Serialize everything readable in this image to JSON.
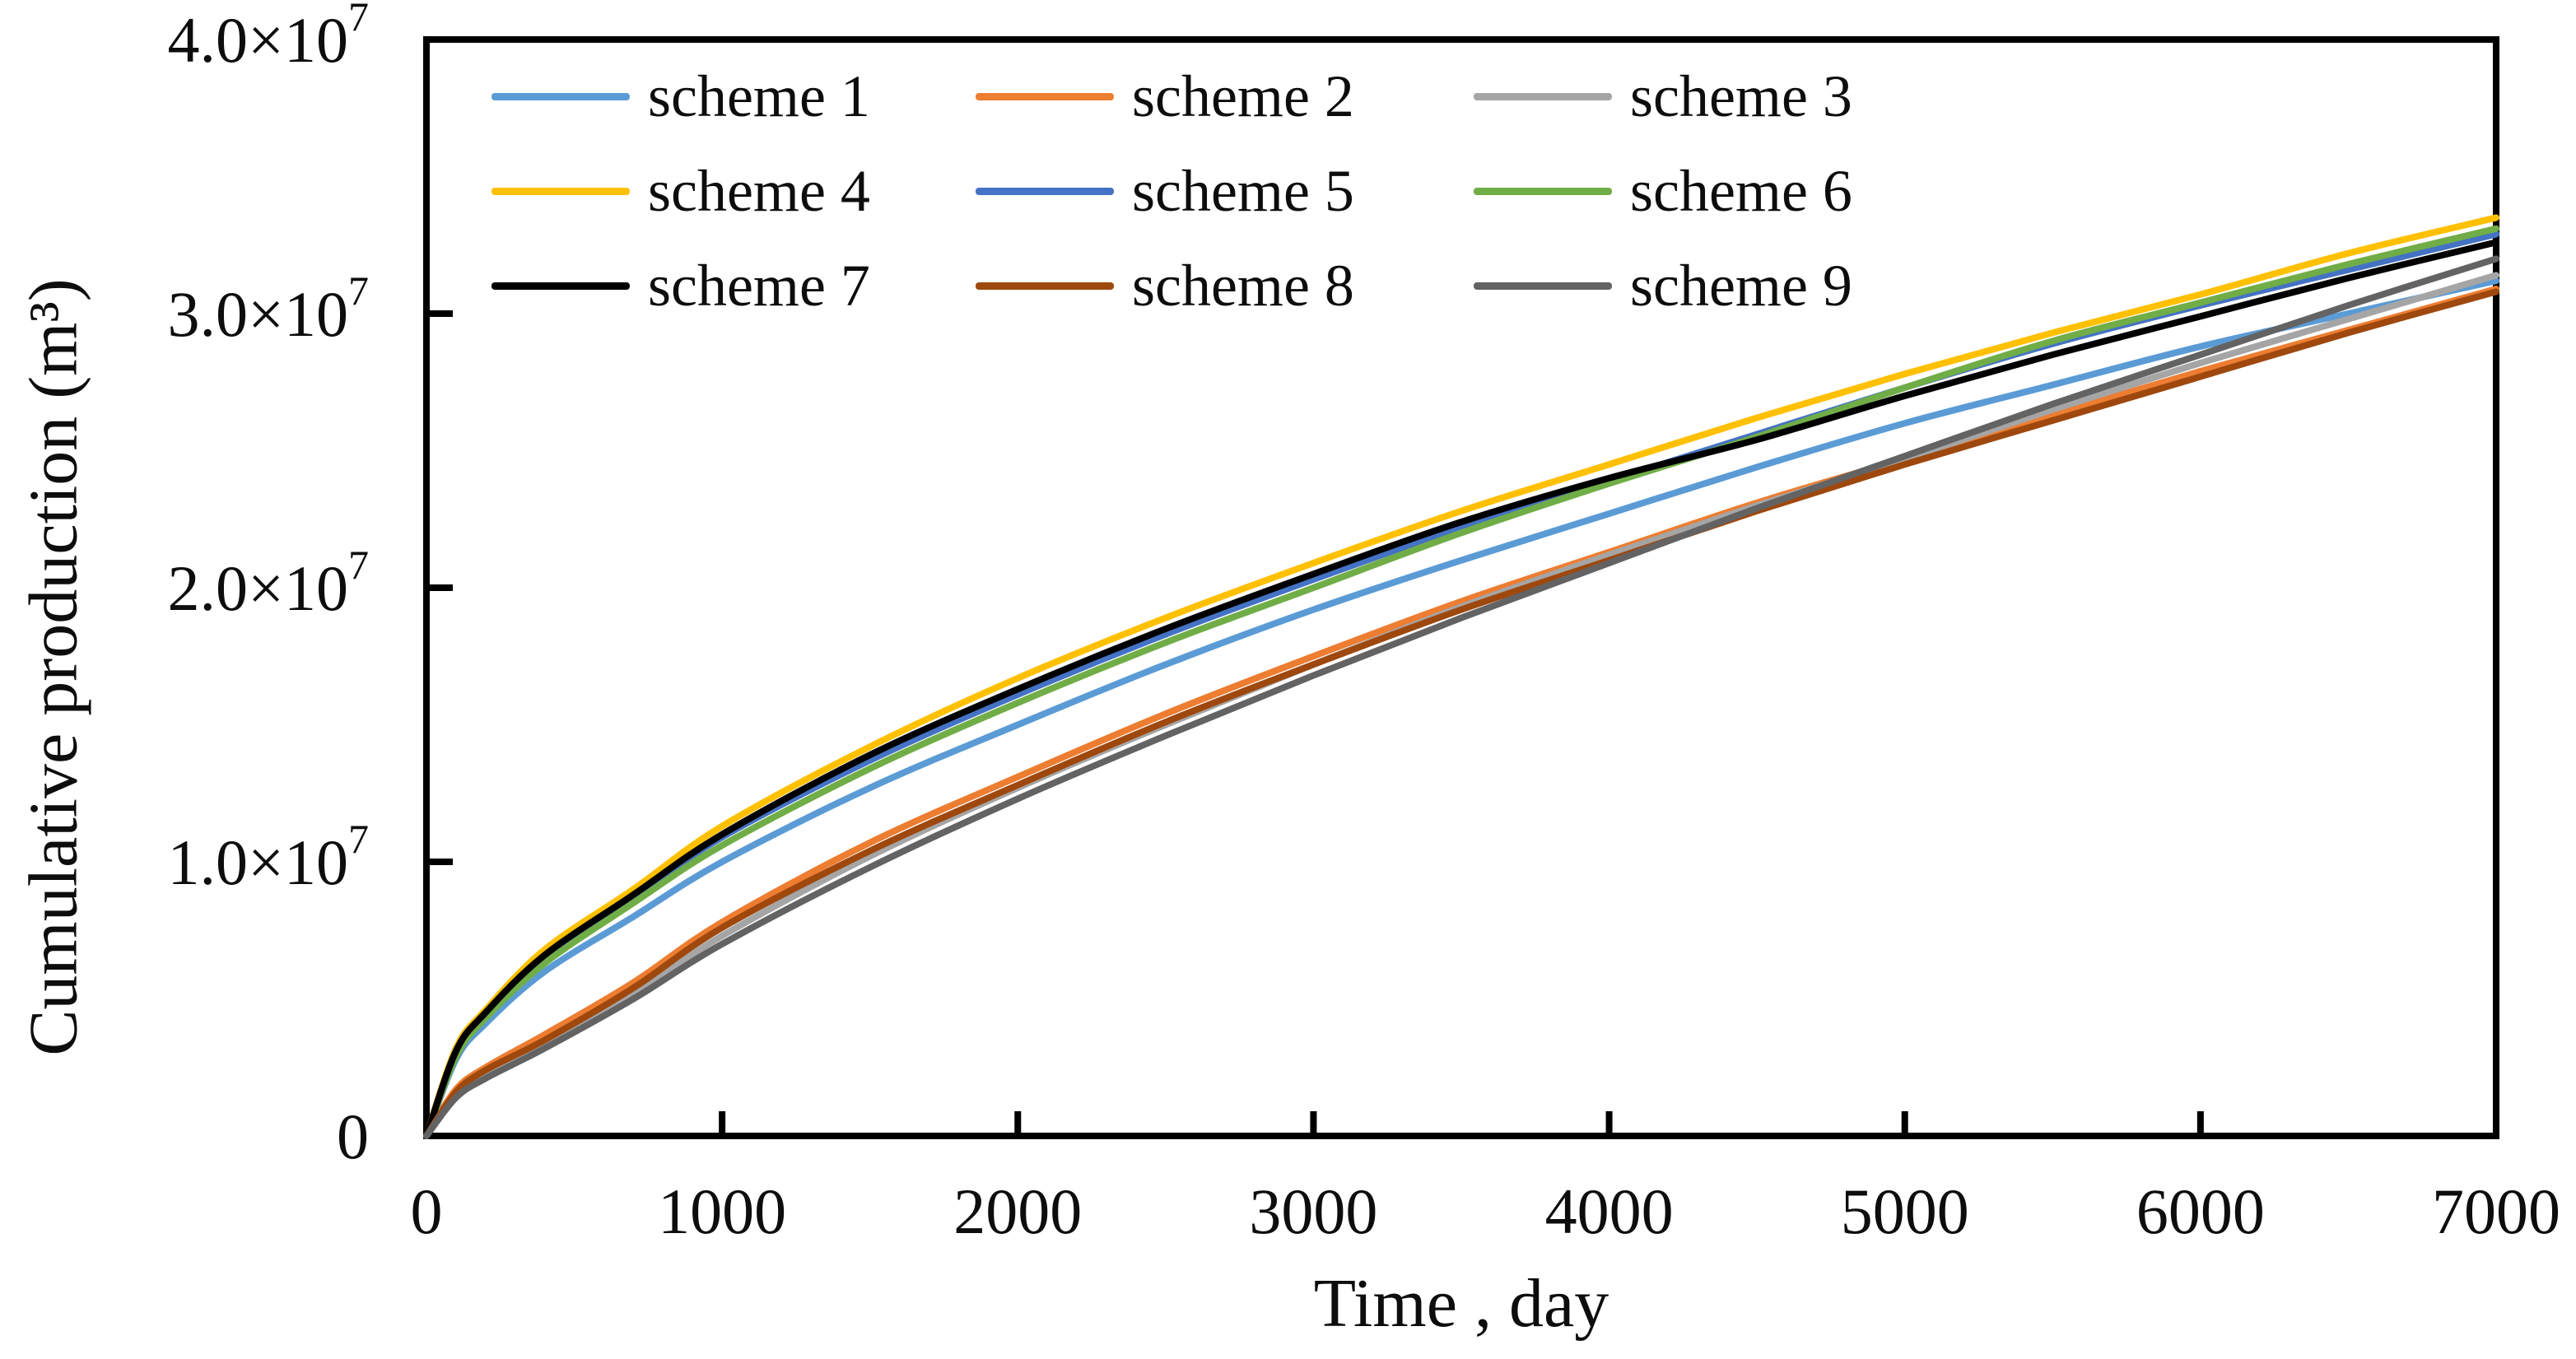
{
  "chart_data": {
    "type": "line",
    "xlabel": "Time , day",
    "ylabel": "Cumulative production (m³)",
    "xlim": [
      0,
      7000
    ],
    "ylim": [
      0,
      40000000
    ],
    "grid": false,
    "legend_position": "inside-top-left, 3 columns",
    "unit_scale": 10000000,
    "x": [
      0,
      100,
      200,
      400,
      700,
      1000,
      1500,
      2000,
      2500,
      3000,
      3500,
      4000,
      4500,
      5000,
      5500,
      6000,
      6500,
      7000
    ],
    "series": [
      {
        "name": "scheme 1",
        "color": "#5B9BD5",
        "values_e7": [
          0,
          0.28,
          0.41,
          0.6,
          0.8,
          1.0,
          1.27,
          1.5,
          1.72,
          1.92,
          2.1,
          2.27,
          2.44,
          2.6,
          2.74,
          2.88,
          3.0,
          3.12
        ]
      },
      {
        "name": "scheme 2",
        "color": "#ED7D31",
        "values_e7": [
          0,
          0.17,
          0.25,
          0.37,
          0.56,
          0.78,
          1.07,
          1.31,
          1.54,
          1.75,
          1.95,
          2.13,
          2.31,
          2.47,
          2.63,
          2.79,
          2.94,
          3.09
        ]
      },
      {
        "name": "scheme 3",
        "color": "#A5A5A5",
        "values_e7": [
          0,
          0.16,
          0.23,
          0.34,
          0.52,
          0.73,
          1.02,
          1.27,
          1.5,
          1.72,
          1.93,
          2.12,
          2.3,
          2.47,
          2.65,
          2.82,
          2.98,
          3.14
        ]
      },
      {
        "name": "scheme 4",
        "color": "#FFC000",
        "values_e7": [
          0,
          0.32,
          0.46,
          0.68,
          0.9,
          1.13,
          1.42,
          1.67,
          1.89,
          2.09,
          2.28,
          2.45,
          2.62,
          2.78,
          2.93,
          3.07,
          3.22,
          3.35
        ]
      },
      {
        "name": "scheme 5",
        "color": "#4472C4",
        "values_e7": [
          0,
          0.3,
          0.44,
          0.65,
          0.87,
          1.09,
          1.37,
          1.61,
          1.83,
          2.03,
          2.22,
          2.39,
          2.56,
          2.73,
          2.89,
          3.03,
          3.16,
          3.29
        ]
      },
      {
        "name": "scheme 6",
        "color": "#70AD47",
        "values_e7": [
          0,
          0.29,
          0.43,
          0.63,
          0.85,
          1.06,
          1.34,
          1.58,
          1.8,
          2.0,
          2.2,
          2.38,
          2.55,
          2.73,
          2.9,
          3.04,
          3.18,
          3.31
        ]
      },
      {
        "name": "scheme 7",
        "color": "#000000",
        "values_e7": [
          0,
          0.31,
          0.45,
          0.66,
          0.88,
          1.1,
          1.39,
          1.63,
          1.85,
          2.05,
          2.24,
          2.4,
          2.54,
          2.7,
          2.85,
          2.99,
          3.13,
          3.26
        ]
      },
      {
        "name": "scheme 8",
        "color": "#9E480E",
        "values_e7": [
          0,
          0.16,
          0.24,
          0.35,
          0.54,
          0.76,
          1.04,
          1.28,
          1.51,
          1.72,
          1.92,
          2.1,
          2.28,
          2.45,
          2.61,
          2.77,
          2.93,
          3.08
        ]
      },
      {
        "name": "scheme 9",
        "color": "#636363",
        "values_e7": [
          0,
          0.14,
          0.21,
          0.32,
          0.5,
          0.7,
          0.98,
          1.23,
          1.46,
          1.68,
          1.89,
          2.09,
          2.29,
          2.48,
          2.67,
          2.85,
          3.03,
          3.2
        ]
      }
    ],
    "x_ticks": [
      {
        "value": 0,
        "label": "0"
      },
      {
        "value": 1000,
        "label": "1000"
      },
      {
        "value": 2000,
        "label": "2000"
      },
      {
        "value": 3000,
        "label": "3000"
      },
      {
        "value": 4000,
        "label": "4000"
      },
      {
        "value": 5000,
        "label": "5000"
      },
      {
        "value": 6000,
        "label": "6000"
      },
      {
        "value": 7000,
        "label": "7000"
      }
    ],
    "y_ticks": [
      {
        "value": 0,
        "base": "0",
        "sup": ""
      },
      {
        "value": 10000000,
        "base": "1.0×10",
        "sup": "7"
      },
      {
        "value": 20000000,
        "base": "2.0×10",
        "sup": "7"
      },
      {
        "value": 30000000,
        "base": "3.0×10",
        "sup": "7"
      },
      {
        "value": 40000000,
        "base": "4.0×10",
        "sup": "7"
      }
    ]
  },
  "legend": {
    "items": [
      {
        "label": "scheme 1",
        "color": "#5B9BD5"
      },
      {
        "label": "scheme 2",
        "color": "#ED7D31"
      },
      {
        "label": "scheme 3",
        "color": "#A5A5A5"
      },
      {
        "label": "scheme 4",
        "color": "#FFC000"
      },
      {
        "label": "scheme 5",
        "color": "#4472C4"
      },
      {
        "label": "scheme 6",
        "color": "#70AD47"
      },
      {
        "label": "scheme 7",
        "color": "#000000"
      },
      {
        "label": "scheme 8",
        "color": "#9E480E"
      },
      {
        "label": "scheme 9",
        "color": "#636363"
      }
    ]
  },
  "style_colors": {
    "axis": "#000000",
    "text": "#0d0d0d",
    "background": "#ffffff"
  }
}
